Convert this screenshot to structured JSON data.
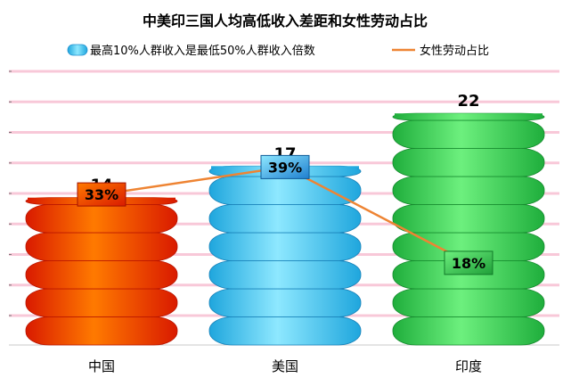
{
  "chart_data": {
    "type": "bar",
    "title": "中美印三国人均高低收入差距和女性劳动占比",
    "categories": [
      "中国",
      "美国",
      "印度"
    ],
    "series": [
      {
        "name": "最高10%人群收入是最低50%人群收入倍数",
        "type": "bar",
        "values": [
          14,
          17,
          22
        ],
        "labels": [
          "14",
          "17",
          "22"
        ]
      },
      {
        "name": "女性劳动占比",
        "type": "line",
        "values": [
          33,
          39,
          18
        ],
        "labels": [
          "33%",
          "39%",
          "18%"
        ]
      }
    ],
    "ylim": [
      0,
      26
    ],
    "y2lim": [
      0,
      60
    ],
    "grid": true,
    "legend": "top",
    "colors": {
      "china": "#ff4400",
      "usa": "#35c8f6",
      "india": "#2ecc4f",
      "line": "#ee8433",
      "grid": "#f8c8d8"
    }
  }
}
